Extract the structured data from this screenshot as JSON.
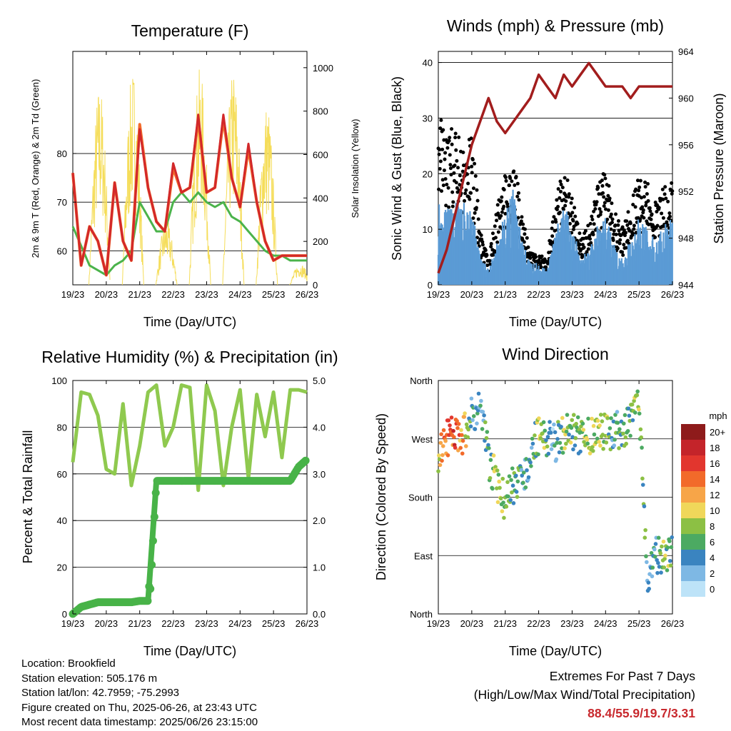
{
  "x_ticks": [
    "19/23",
    "20/23",
    "21/23",
    "22/23",
    "23/23",
    "24/23",
    "25/23",
    "26/23"
  ],
  "x_label": "Time (Day/UTC)",
  "colors": {
    "temp_2m": "#d2282a",
    "temp_9m": "#f26b2a",
    "dewpoint": "#4bb34b",
    "solar": "#f5dd5a",
    "wind": "#5b9bd5",
    "gust": "#000000",
    "pressure": "#a21d1d",
    "rh": "#8fc94f",
    "precip": "#48b348"
  },
  "chart_data": [
    {
      "type": "line",
      "title": "Temperature (F)",
      "xlabel": "Time (Day/UTC)",
      "ylabel": "2m & 9m T (Red, Orange) & 2m Td (Green)",
      "ylabel_right": "Solar Insolation (Yellow)",
      "ylim": [
        53,
        101
      ],
      "ylim_right": [
        0,
        1075
      ],
      "yticks": [
        60,
        70,
        80
      ],
      "yticks_right": [
        0,
        200,
        400,
        600,
        800,
        1000
      ],
      "x_days": [
        0,
        0.25,
        0.5,
        0.75,
        1,
        1.25,
        1.5,
        1.75,
        2,
        2.25,
        2.5,
        2.75,
        3,
        3.25,
        3.5,
        3.75,
        4,
        4.25,
        4.5,
        4.75,
        5,
        5.25,
        5.5,
        5.75,
        6,
        6.25,
        6.5,
        6.75,
        7
      ],
      "series": [
        {
          "name": "2m T",
          "values": [
            76,
            57,
            65,
            62,
            55,
            74,
            62,
            58,
            85,
            73,
            66,
            64,
            78,
            72,
            73,
            88,
            72,
            73,
            88,
            75,
            69,
            82,
            70,
            62,
            58,
            59,
            59,
            59,
            59
          ]
        },
        {
          "name": "9m T",
          "values": [
            76,
            57,
            65,
            62,
            55,
            74,
            62,
            58,
            86,
            73,
            66,
            64,
            77,
            72,
            73,
            87,
            72,
            73,
            87,
            75,
            69,
            81,
            70,
            62,
            58,
            59,
            59,
            59,
            59
          ]
        },
        {
          "name": "2m Td",
          "values": [
            65,
            61,
            57,
            56,
            55,
            57,
            58,
            60,
            70,
            67,
            64,
            64,
            70,
            72,
            70,
            72,
            70,
            69,
            70,
            67,
            66,
            64,
            62,
            60,
            59,
            59,
            58,
            58,
            58
          ]
        }
      ],
      "solar_peaks": [
        {
          "day": 0.8,
          "value": 930
        },
        {
          "day": 1.8,
          "value": 1000
        },
        {
          "day": 2.8,
          "value": 300
        },
        {
          "day": 3.8,
          "value": 1000
        },
        {
          "day": 4.8,
          "value": 1000
        },
        {
          "day": 5.8,
          "value": 850
        },
        {
          "day": 6.8,
          "value": 100
        }
      ]
    },
    {
      "type": "scatter",
      "title": "Winds (mph) & Pressure (mb)",
      "xlabel": "Time (Day/UTC)",
      "ylabel": "Sonic Wind & Gust (Blue, Black)",
      "ylabel_right": "Station Pressure (Maroon)",
      "ylim": [
        0,
        42
      ],
      "ylim_right": [
        944,
        964
      ],
      "yticks": [
        0,
        10,
        20,
        30,
        40
      ],
      "yticks_right": [
        944,
        948,
        952,
        956,
        960,
        964
      ],
      "x_days": [
        0,
        0.25,
        0.5,
        0.75,
        1,
        1.25,
        1.5,
        1.75,
        2,
        2.25,
        2.5,
        2.75,
        3,
        3.25,
        3.5,
        3.75,
        4,
        4.25,
        4.5,
        4.75,
        5,
        5.25,
        5.5,
        5.75,
        6,
        6.25,
        6.5,
        6.75,
        7
      ],
      "series": [
        {
          "name": "Sonic Wind",
          "values": [
            12,
            10,
            11,
            11,
            11,
            4,
            2,
            6,
            10,
            13,
            6,
            3,
            3,
            2,
            7,
            11,
            8,
            4,
            5,
            8,
            9,
            6,
            4,
            6,
            9,
            8,
            6,
            8,
            9
          ]
        },
        {
          "name": "Gust",
          "values": [
            30,
            25,
            24,
            23,
            24,
            9,
            4,
            12,
            18,
            20,
            12,
            5,
            5,
            4,
            14,
            18,
            15,
            8,
            10,
            16,
            18,
            12,
            9,
            13,
            18,
            16,
            13,
            16,
            16
          ]
        },
        {
          "name": "Station Pressure",
          "values": [
            945,
            947,
            950,
            953,
            956,
            958,
            960,
            958,
            957,
            958,
            959,
            960,
            962,
            961,
            960,
            962,
            961,
            962,
            963,
            962,
            961,
            961,
            961,
            960,
            961,
            961,
            961,
            961,
            961
          ]
        }
      ]
    },
    {
      "type": "line",
      "title": "Relative Humidity (%) & Precipitation (in)",
      "xlabel": "Time (Day/UTC)",
      "ylabel": "Percent & Total Rainfall",
      "ylim": [
        0,
        100
      ],
      "ylim_right": [
        0,
        5
      ],
      "yticks": [
        0,
        20,
        40,
        60,
        80,
        100
      ],
      "yticks_right": [
        "0.0",
        "1.0",
        "2.0",
        "3.0",
        "4.0",
        "5.0"
      ],
      "x_days": [
        0,
        0.25,
        0.5,
        0.75,
        1,
        1.25,
        1.5,
        1.75,
        2,
        2.25,
        2.5,
        2.75,
        3,
        3.25,
        3.5,
        3.75,
        4,
        4.25,
        4.5,
        4.75,
        5,
        5.25,
        5.5,
        5.75,
        6,
        6.25,
        6.5,
        6.75,
        7
      ],
      "series": [
        {
          "name": "RH",
          "values": [
            65,
            95,
            94,
            85,
            62,
            60,
            90,
            55,
            72,
            95,
            98,
            72,
            80,
            98,
            97,
            53,
            98,
            87,
            55,
            80,
            96,
            58,
            94,
            76,
            95,
            67,
            96,
            96,
            95
          ]
        },
        {
          "name": "Precipitation",
          "values": [
            0,
            0.15,
            0.2,
            0.25,
            0.25,
            0.25,
            0.25,
            0.25,
            0.28,
            0.28,
            2.85,
            2.85,
            2.85,
            2.85,
            2.85,
            2.85,
            2.85,
            2.85,
            2.85,
            2.85,
            2.85,
            2.85,
            2.85,
            2.85,
            2.85,
            2.85,
            2.85,
            3.15,
            3.31
          ]
        }
      ]
    },
    {
      "type": "scatter",
      "title": "Wind Direction",
      "xlabel": "Time (Day/UTC)",
      "ylabel": "Direction (Colored By Speed)",
      "yticks": [
        "North",
        "West",
        "South",
        "East",
        "North"
      ],
      "legend_title": "mph",
      "legend_entries": [
        "20+",
        "18",
        "16",
        "14",
        "12",
        "10",
        "8",
        "6",
        "4",
        "2",
        "0"
      ],
      "legend_colors": [
        "#8e1b1b",
        "#c4242a",
        "#e2362e",
        "#f26a2a",
        "#f7a548",
        "#f0d75a",
        "#8cc044",
        "#4caa62",
        "#3a84c0",
        "#7eb8e4",
        "#bde3f8"
      ],
      "x_days": [
        0,
        0.25,
        0.5,
        0.75,
        1,
        1.25,
        1.5,
        1.75,
        2,
        2.25,
        2.5,
        2.75,
        3,
        3.25,
        3.5,
        3.75,
        4,
        4.25,
        4.5,
        4.75,
        5,
        5.25,
        5.5,
        5.75,
        6,
        6.25,
        6.5,
        6.75,
        7
      ],
      "direction_deg": [
        250,
        272,
        275,
        275,
        305,
        320,
        240,
        200,
        170,
        200,
        200,
        250,
        275,
        270,
        265,
        275,
        280,
        272,
        275,
        285,
        280,
        280,
        285,
        295,
        320,
        60,
        90,
        95,
        95
      ],
      "speed_mph": [
        10,
        16,
        15,
        12,
        4,
        2,
        6,
        8,
        8,
        6,
        5,
        4,
        8,
        6,
        3,
        8,
        6,
        6,
        9,
        8,
        9,
        4,
        6,
        6,
        8,
        4,
        5,
        7,
        6
      ]
    }
  ],
  "info": {
    "location": "Location: Brookfield",
    "elevation": "Station elevation: 505.176 m",
    "latlon": "Station lat/lon: 42.7959; -75.2993",
    "created": "Figure created on Thu, 2025-06-26, at 23:43 UTC",
    "recent": "Most recent data timestamp: 2025/06/26 23:15:00"
  },
  "extremes": {
    "title": "Extremes For Past 7 Days",
    "subtitle": "(High/Low/Max Wind/Total Precipitation)",
    "values": "88.4/55.9/19.7/3.31"
  }
}
